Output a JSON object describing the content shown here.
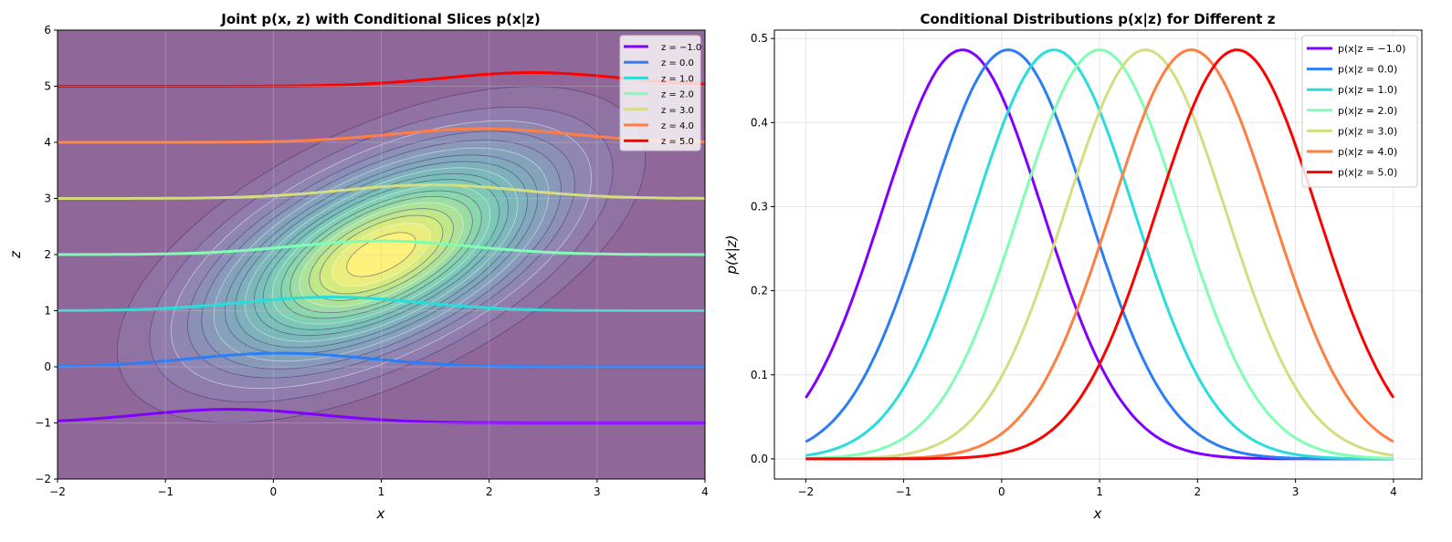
{
  "chart_data": [
    {
      "type": "heatmap",
      "title": "Joint p(x, z) with Conditional Slices p(x|z)",
      "xlabel": "x",
      "ylabel": "z",
      "xlim": [
        -2,
        4
      ],
      "ylim": [
        -2,
        6
      ],
      "xticks": [
        "−2",
        "−1",
        "0",
        "1",
        "2",
        "3",
        "4"
      ],
      "yticks": [
        "−2",
        "−1",
        "0",
        "1",
        "2",
        "3",
        "4",
        "5",
        "6"
      ],
      "grid": true,
      "joint": {
        "mean": [
          1.0,
          2.0
        ],
        "cov": [
          [
            1.0,
            0.7
          ],
          [
            0.7,
            1.5
          ]
        ],
        "colormap": "viridis",
        "levels": 20
      },
      "slice_scale": 0.5,
      "legend_position": "top-right",
      "series": [
        {
          "name": "z = −1.0",
          "z": -1.0,
          "color": "#8000ff"
        },
        {
          "name": "z = 0.0",
          "z": 0.0,
          "color": "#2c7ef7"
        },
        {
          "name": "z = 1.0",
          "z": 1.0,
          "color": "#2adddd"
        },
        {
          "name": "z = 2.0",
          "z": 2.0,
          "color": "#80ffb4"
        },
        {
          "name": "z = 3.0",
          "z": 3.0,
          "color": "#d4dd80"
        },
        {
          "name": "z = 4.0",
          "z": 4.0,
          "color": "#ff7e41"
        },
        {
          "name": "z = 5.0",
          "z": 5.0,
          "color": "#ff0000"
        }
      ]
    },
    {
      "type": "line",
      "title": "Conditional Distributions p(x|z) for Different z",
      "xlabel": "x",
      "ylabel": "p(x|z)",
      "xlim": [
        -2.32,
        4.29
      ],
      "ylim": [
        -0.024,
        0.51
      ],
      "xticks": [
        "−2",
        "−1",
        "0",
        "1",
        "2",
        "3",
        "4"
      ],
      "yticks": [
        "0.0",
        "0.1",
        "0.2",
        "0.3",
        "0.4",
        "0.5"
      ],
      "grid": true,
      "legend_position": "top-right",
      "conditional": {
        "mean_at_z0": 0.067,
        "slope": 0.467,
        "std": 0.82
      },
      "x_range": [
        -2,
        4
      ],
      "series": [
        {
          "name": "p(x|z = −1.0)",
          "z": -1.0,
          "peak_x": -0.4,
          "color": "#8000ff"
        },
        {
          "name": "p(x|z = 0.0)",
          "z": 0.0,
          "peak_x": 0.07,
          "color": "#2c7ef7"
        },
        {
          "name": "p(x|z = 1.0)",
          "z": 1.0,
          "peak_x": 0.53,
          "color": "#2adddd"
        },
        {
          "name": "p(x|z = 2.0)",
          "z": 2.0,
          "peak_x": 1.0,
          "color": "#80ffb4"
        },
        {
          "name": "p(x|z = 3.0)",
          "z": 3.0,
          "peak_x": 1.47,
          "color": "#d4dd80"
        },
        {
          "name": "p(x|z = 4.0)",
          "z": 4.0,
          "peak_x": 1.93,
          "color": "#ff7e41"
        },
        {
          "name": "p(x|z = 5.0)",
          "z": 5.0,
          "peak_x": 2.4,
          "color": "#ff0000"
        }
      ],
      "peak_value": 0.487
    }
  ]
}
